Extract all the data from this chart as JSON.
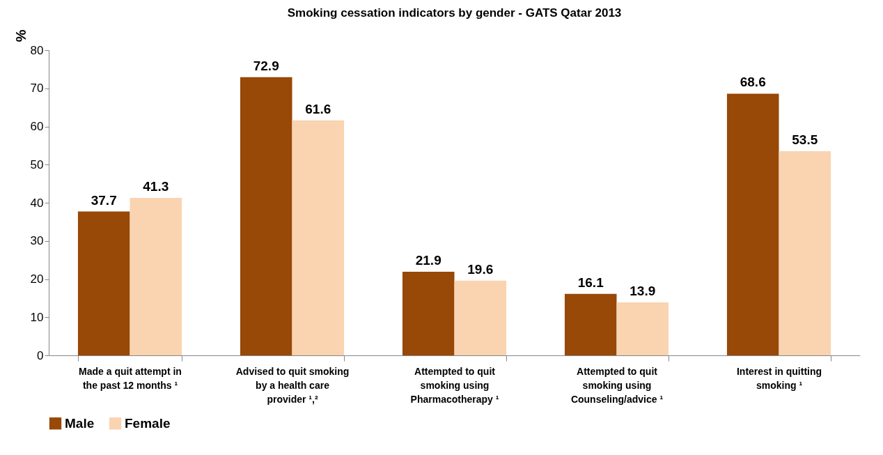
{
  "chart_data": {
    "type": "bar",
    "title": "Smoking cessation indicators by gender - GATS Qatar 2013",
    "ylabel": "%",
    "categories": [
      "Made a quit attempt in the past 12 months ¹",
      "Advised to quit smoking by a health care provider ¹,²",
      "Attempted to quit smoking using Pharmacotherapy ¹",
      "Attempted to quit smoking using Counseling/advice ¹",
      "Interest in quitting smoking ¹"
    ],
    "series": [
      {
        "name": "Male",
        "color": "#984807",
        "values": [
          37.7,
          72.9,
          21.9,
          16.1,
          68.6
        ]
      },
      {
        "name": "Female",
        "color": "#fad3b0",
        "values": [
          41.3,
          61.6,
          19.6,
          13.9,
          53.5
        ]
      }
    ],
    "ylim": [
      0,
      80
    ],
    "yticks": [
      0,
      10,
      20,
      30,
      40,
      50,
      60,
      70,
      80
    ],
    "data_labels": true,
    "legend": "bottom left",
    "grid": false
  }
}
